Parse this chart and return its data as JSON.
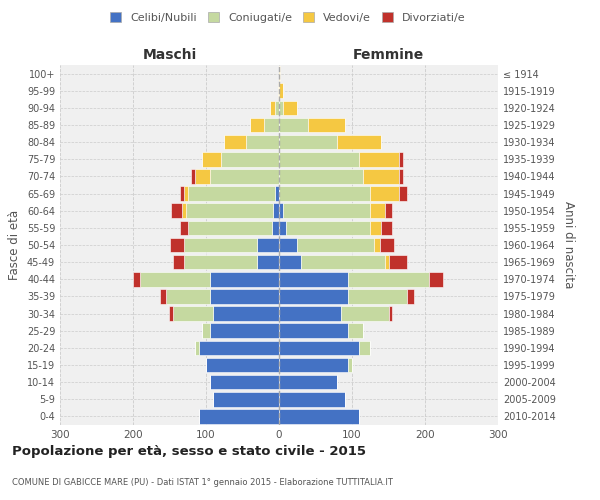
{
  "age_groups": [
    "0-4",
    "5-9",
    "10-14",
    "15-19",
    "20-24",
    "25-29",
    "30-34",
    "35-39",
    "40-44",
    "45-49",
    "50-54",
    "55-59",
    "60-64",
    "65-69",
    "70-74",
    "75-79",
    "80-84",
    "85-89",
    "90-94",
    "95-99",
    "100+"
  ],
  "birth_years": [
    "2010-2014",
    "2005-2009",
    "2000-2004",
    "1995-1999",
    "1990-1994",
    "1985-1989",
    "1980-1984",
    "1975-1979",
    "1970-1974",
    "1965-1969",
    "1960-1964",
    "1955-1959",
    "1950-1954",
    "1945-1949",
    "1940-1944",
    "1935-1939",
    "1930-1934",
    "1925-1929",
    "1920-1924",
    "1915-1919",
    "≤ 1914"
  ],
  "males": {
    "celibi": [
      110,
      90,
      95,
      100,
      110,
      95,
      90,
      95,
      95,
      30,
      30,
      10,
      8,
      5,
      0,
      0,
      0,
      0,
      0,
      0,
      0
    ],
    "coniugati": [
      0,
      0,
      0,
      0,
      5,
      10,
      55,
      60,
      95,
      100,
      100,
      115,
      120,
      120,
      95,
      80,
      45,
      20,
      5,
      0,
      0
    ],
    "vedovi": [
      0,
      0,
      0,
      0,
      0,
      0,
      0,
      0,
      0,
      0,
      0,
      0,
      5,
      5,
      20,
      25,
      30,
      20,
      8,
      2,
      0
    ],
    "divorziati": [
      0,
      0,
      0,
      0,
      0,
      0,
      5,
      8,
      10,
      15,
      20,
      10,
      15,
      5,
      5,
      0,
      0,
      0,
      0,
      0,
      0
    ]
  },
  "females": {
    "nubili": [
      110,
      90,
      80,
      95,
      110,
      95,
      85,
      95,
      95,
      30,
      25,
      10,
      5,
      0,
      0,
      0,
      0,
      0,
      0,
      0,
      0
    ],
    "coniugate": [
      0,
      0,
      0,
      5,
      15,
      20,
      65,
      80,
      110,
      115,
      105,
      115,
      120,
      125,
      115,
      110,
      80,
      40,
      5,
      0,
      0
    ],
    "vedove": [
      0,
      0,
      0,
      0,
      0,
      0,
      0,
      0,
      0,
      5,
      8,
      15,
      20,
      40,
      50,
      55,
      60,
      50,
      20,
      5,
      2
    ],
    "divorziate": [
      0,
      0,
      0,
      0,
      0,
      0,
      5,
      10,
      20,
      25,
      20,
      15,
      10,
      10,
      5,
      5,
      0,
      0,
      0,
      0,
      0
    ]
  },
  "colors": {
    "celibi": "#4472C4",
    "coniugati": "#c5d9a0",
    "vedovi": "#f5c842",
    "divorziati": "#c0312b"
  },
  "title": "Popolazione per età, sesso e stato civile - 2015",
  "subtitle": "COMUNE DI GABICCE MARE (PU) - Dati ISTAT 1° gennaio 2015 - Elaborazione TUTTITALIA.IT",
  "xlabel_left": "Maschi",
  "xlabel_right": "Femmine",
  "ylabel_left": "Fasce di età",
  "ylabel_right": "Anni di nascita",
  "xlim": 300,
  "legend_labels": [
    "Celibi/Nubili",
    "Coniugati/e",
    "Vedovi/e",
    "Divorziati/e"
  ],
  "bg_color": "#ffffff",
  "plot_bg_color": "#f0f0f0",
  "grid_color": "#cccccc"
}
